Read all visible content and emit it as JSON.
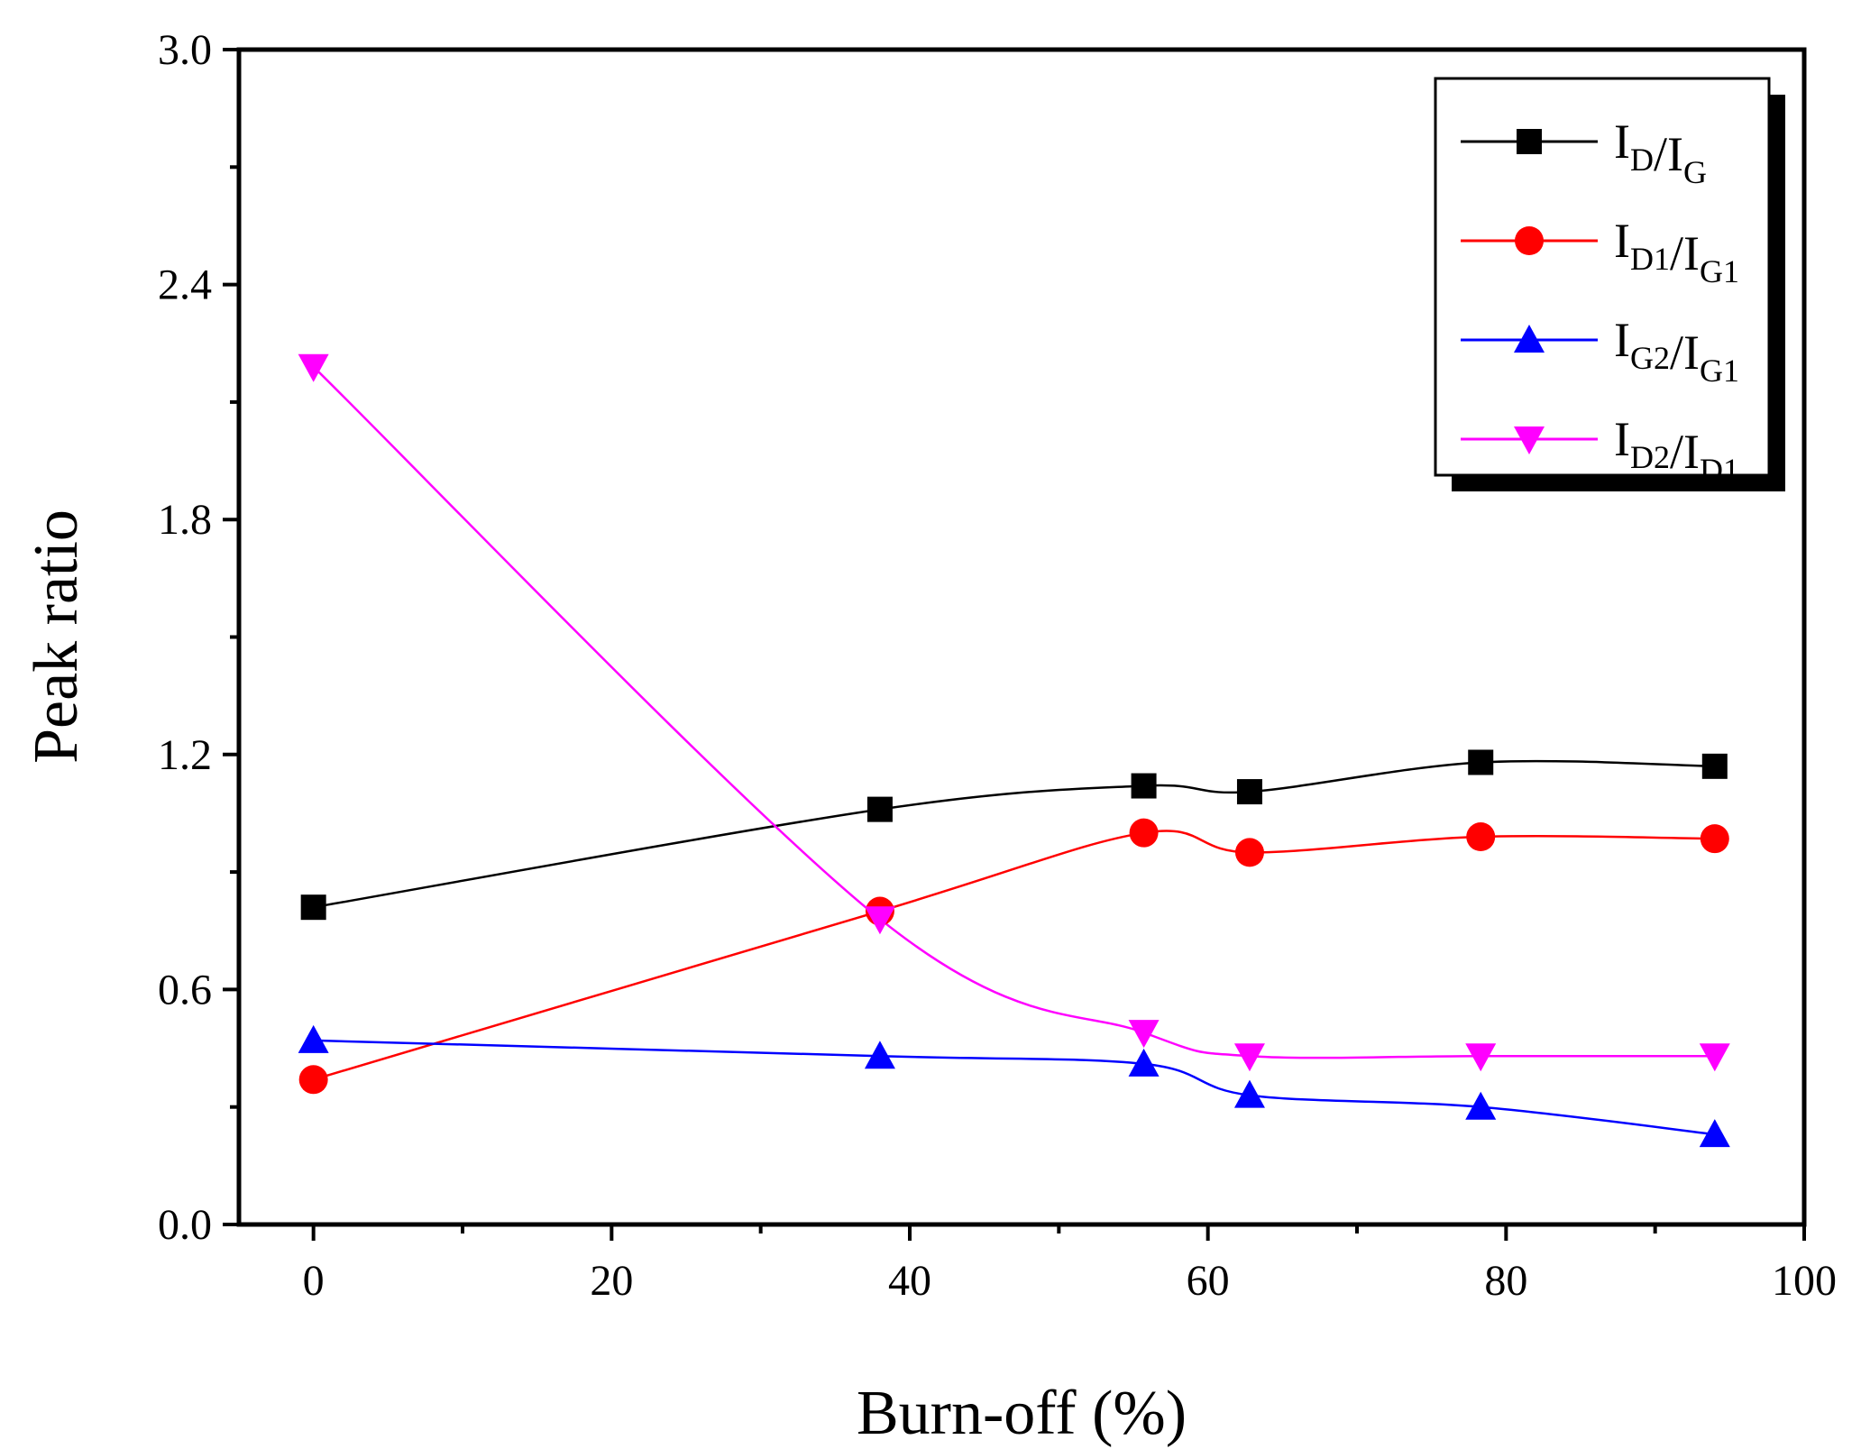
{
  "chart_data": {
    "type": "line",
    "title": "",
    "xlabel": "Burn-off (%)",
    "ylabel": "Peak ratio",
    "xlim": [
      -5,
      100
    ],
    "ylim": [
      0.0,
      3.0
    ],
    "x_ticks": [
      0,
      20,
      40,
      60,
      80,
      100
    ],
    "x_tick_labels": [
      "0",
      "20",
      "40",
      "60",
      "80",
      "100"
    ],
    "y_ticks": [
      0.0,
      0.6,
      1.2,
      1.8,
      2.4,
      3.0
    ],
    "y_tick_labels": [
      "0.0",
      "0.6",
      "1.2",
      "1.8",
      "2.4",
      "3.0"
    ],
    "grid": false,
    "legend_position": "top-right",
    "x": [
      0,
      38,
      55.7,
      62.8,
      78.3,
      94
    ],
    "series": [
      {
        "name": "ID/IG",
        "label_parts": [
          [
            "I",
            "D"
          ],
          [
            "I",
            "G"
          ]
        ],
        "color": "#000000",
        "marker": "square",
        "values": [
          0.81,
          1.06,
          1.12,
          1.105,
          1.18,
          1.17
        ]
      },
      {
        "name": "ID1/IG1",
        "label_parts": [
          [
            "I",
            "D1"
          ],
          [
            "I",
            "G1"
          ]
        ],
        "color": "#ff0000",
        "marker": "circle",
        "values": [
          0.37,
          0.8,
          1.0,
          0.95,
          0.99,
          0.985
        ]
      },
      {
        "name": "IG2/IG1",
        "label_parts": [
          [
            "I",
            "G2"
          ],
          [
            "I",
            "G1"
          ]
        ],
        "color": "#0000ff",
        "marker": "triangle-up",
        "values": [
          0.47,
          0.43,
          0.41,
          0.33,
          0.3,
          0.23
        ]
      },
      {
        "name": "ID2/ID1",
        "label_parts": [
          [
            "I",
            "D2"
          ],
          [
            "I",
            "D1"
          ]
        ],
        "color": "#ff00ff",
        "marker": "triangle-down",
        "values": [
          2.19,
          0.78,
          0.49,
          0.43,
          0.43,
          0.43
        ]
      }
    ]
  }
}
